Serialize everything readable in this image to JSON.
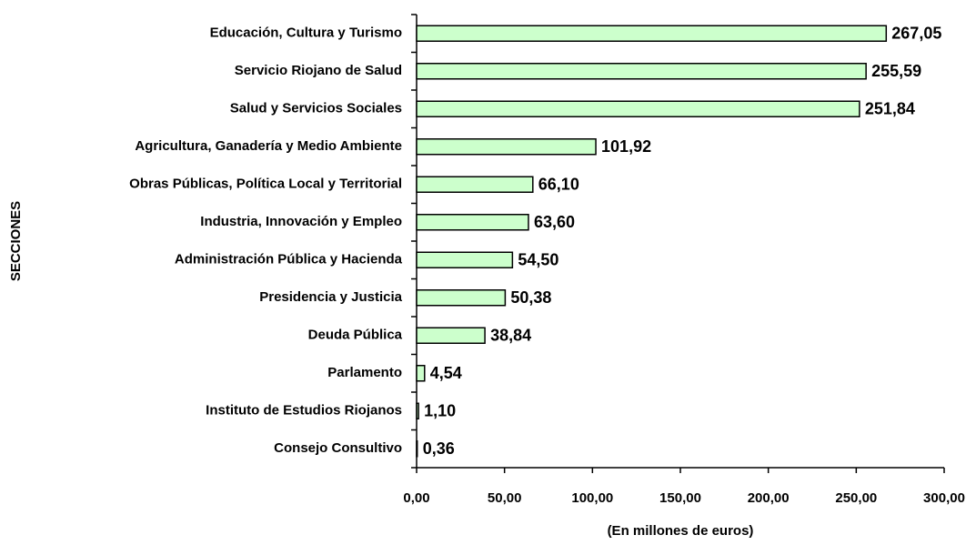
{
  "chart_data": {
    "type": "bar",
    "orientation": "horizontal",
    "x_label": "(En millones de euros)",
    "y_label": "SECCIONES",
    "categories": [
      "Educación, Cultura y Turismo",
      "Servicio Riojano de Salud",
      "Salud y Servicios Sociales",
      "Agricultura, Ganadería y Medio Ambiente",
      "Obras Públicas, Política Local y Territorial",
      "Industria, Innovación y Empleo",
      "Administración Pública y Hacienda",
      "Presidencia y Justicia",
      "Deuda Pública",
      "Parlamento",
      "Instituto de Estudios Riojanos",
      "Consejo Consultivo"
    ],
    "values": [
      267.05,
      255.59,
      251.84,
      101.92,
      66.1,
      63.6,
      54.5,
      50.38,
      38.84,
      4.54,
      1.1,
      0.36
    ],
    "value_labels": [
      "267,05",
      "255,59",
      "251,84",
      "101,92",
      "66,10",
      "63,60",
      "54,50",
      "50,38",
      "38,84",
      "4,54",
      "1,10",
      "0,36"
    ],
    "color": "#ccffcc",
    "xlim": [
      0,
      300
    ],
    "xticks": [
      {
        "value": 0,
        "label": "0,00"
      },
      {
        "value": 50,
        "label": "50,00"
      },
      {
        "value": 100,
        "label": "100,00"
      },
      {
        "value": 150,
        "label": "150,00"
      },
      {
        "value": 200,
        "label": "200,00"
      },
      {
        "value": 250,
        "label": "250,00"
      },
      {
        "value": 300,
        "label": "300,00"
      }
    ],
    "grid": false
  }
}
